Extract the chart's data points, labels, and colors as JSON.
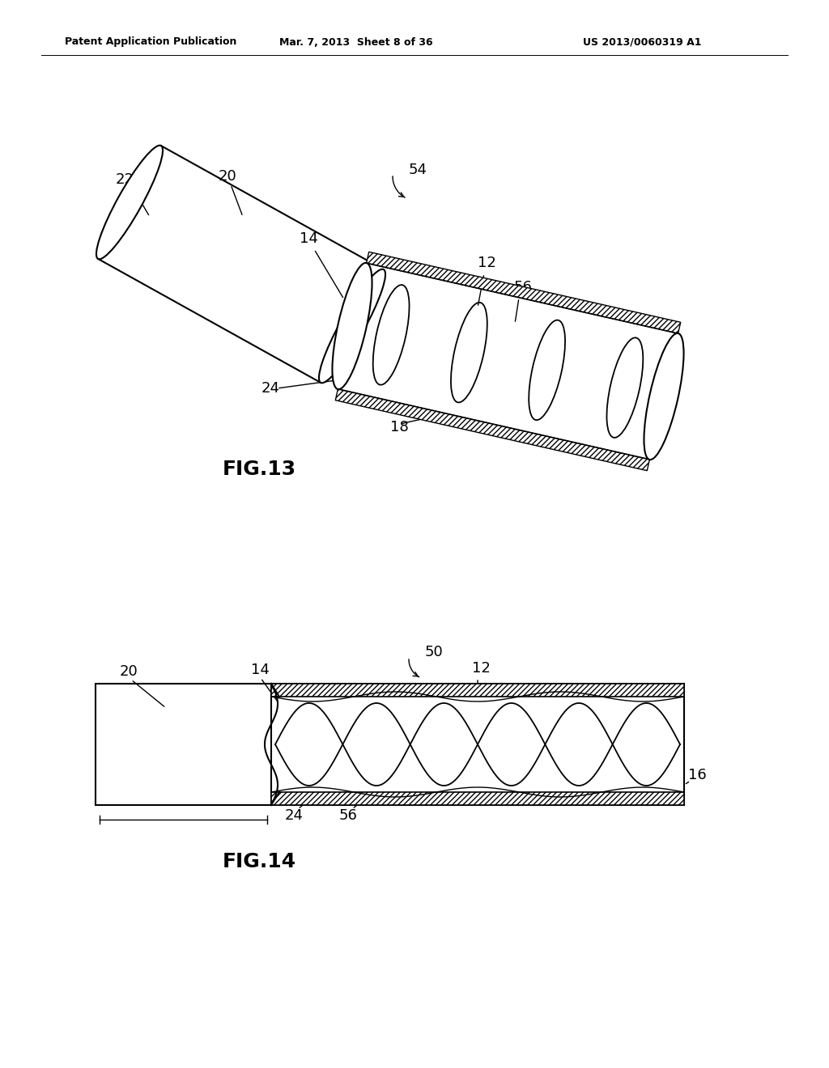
{
  "bg_color": "#ffffff",
  "header_left": "Patent Application Publication",
  "header_mid": "Mar. 7, 2013  Sheet 8 of 36",
  "header_right": "US 2013/0060319 A1",
  "fig13_label": "FIG.13",
  "fig14_label": "FIG.14"
}
